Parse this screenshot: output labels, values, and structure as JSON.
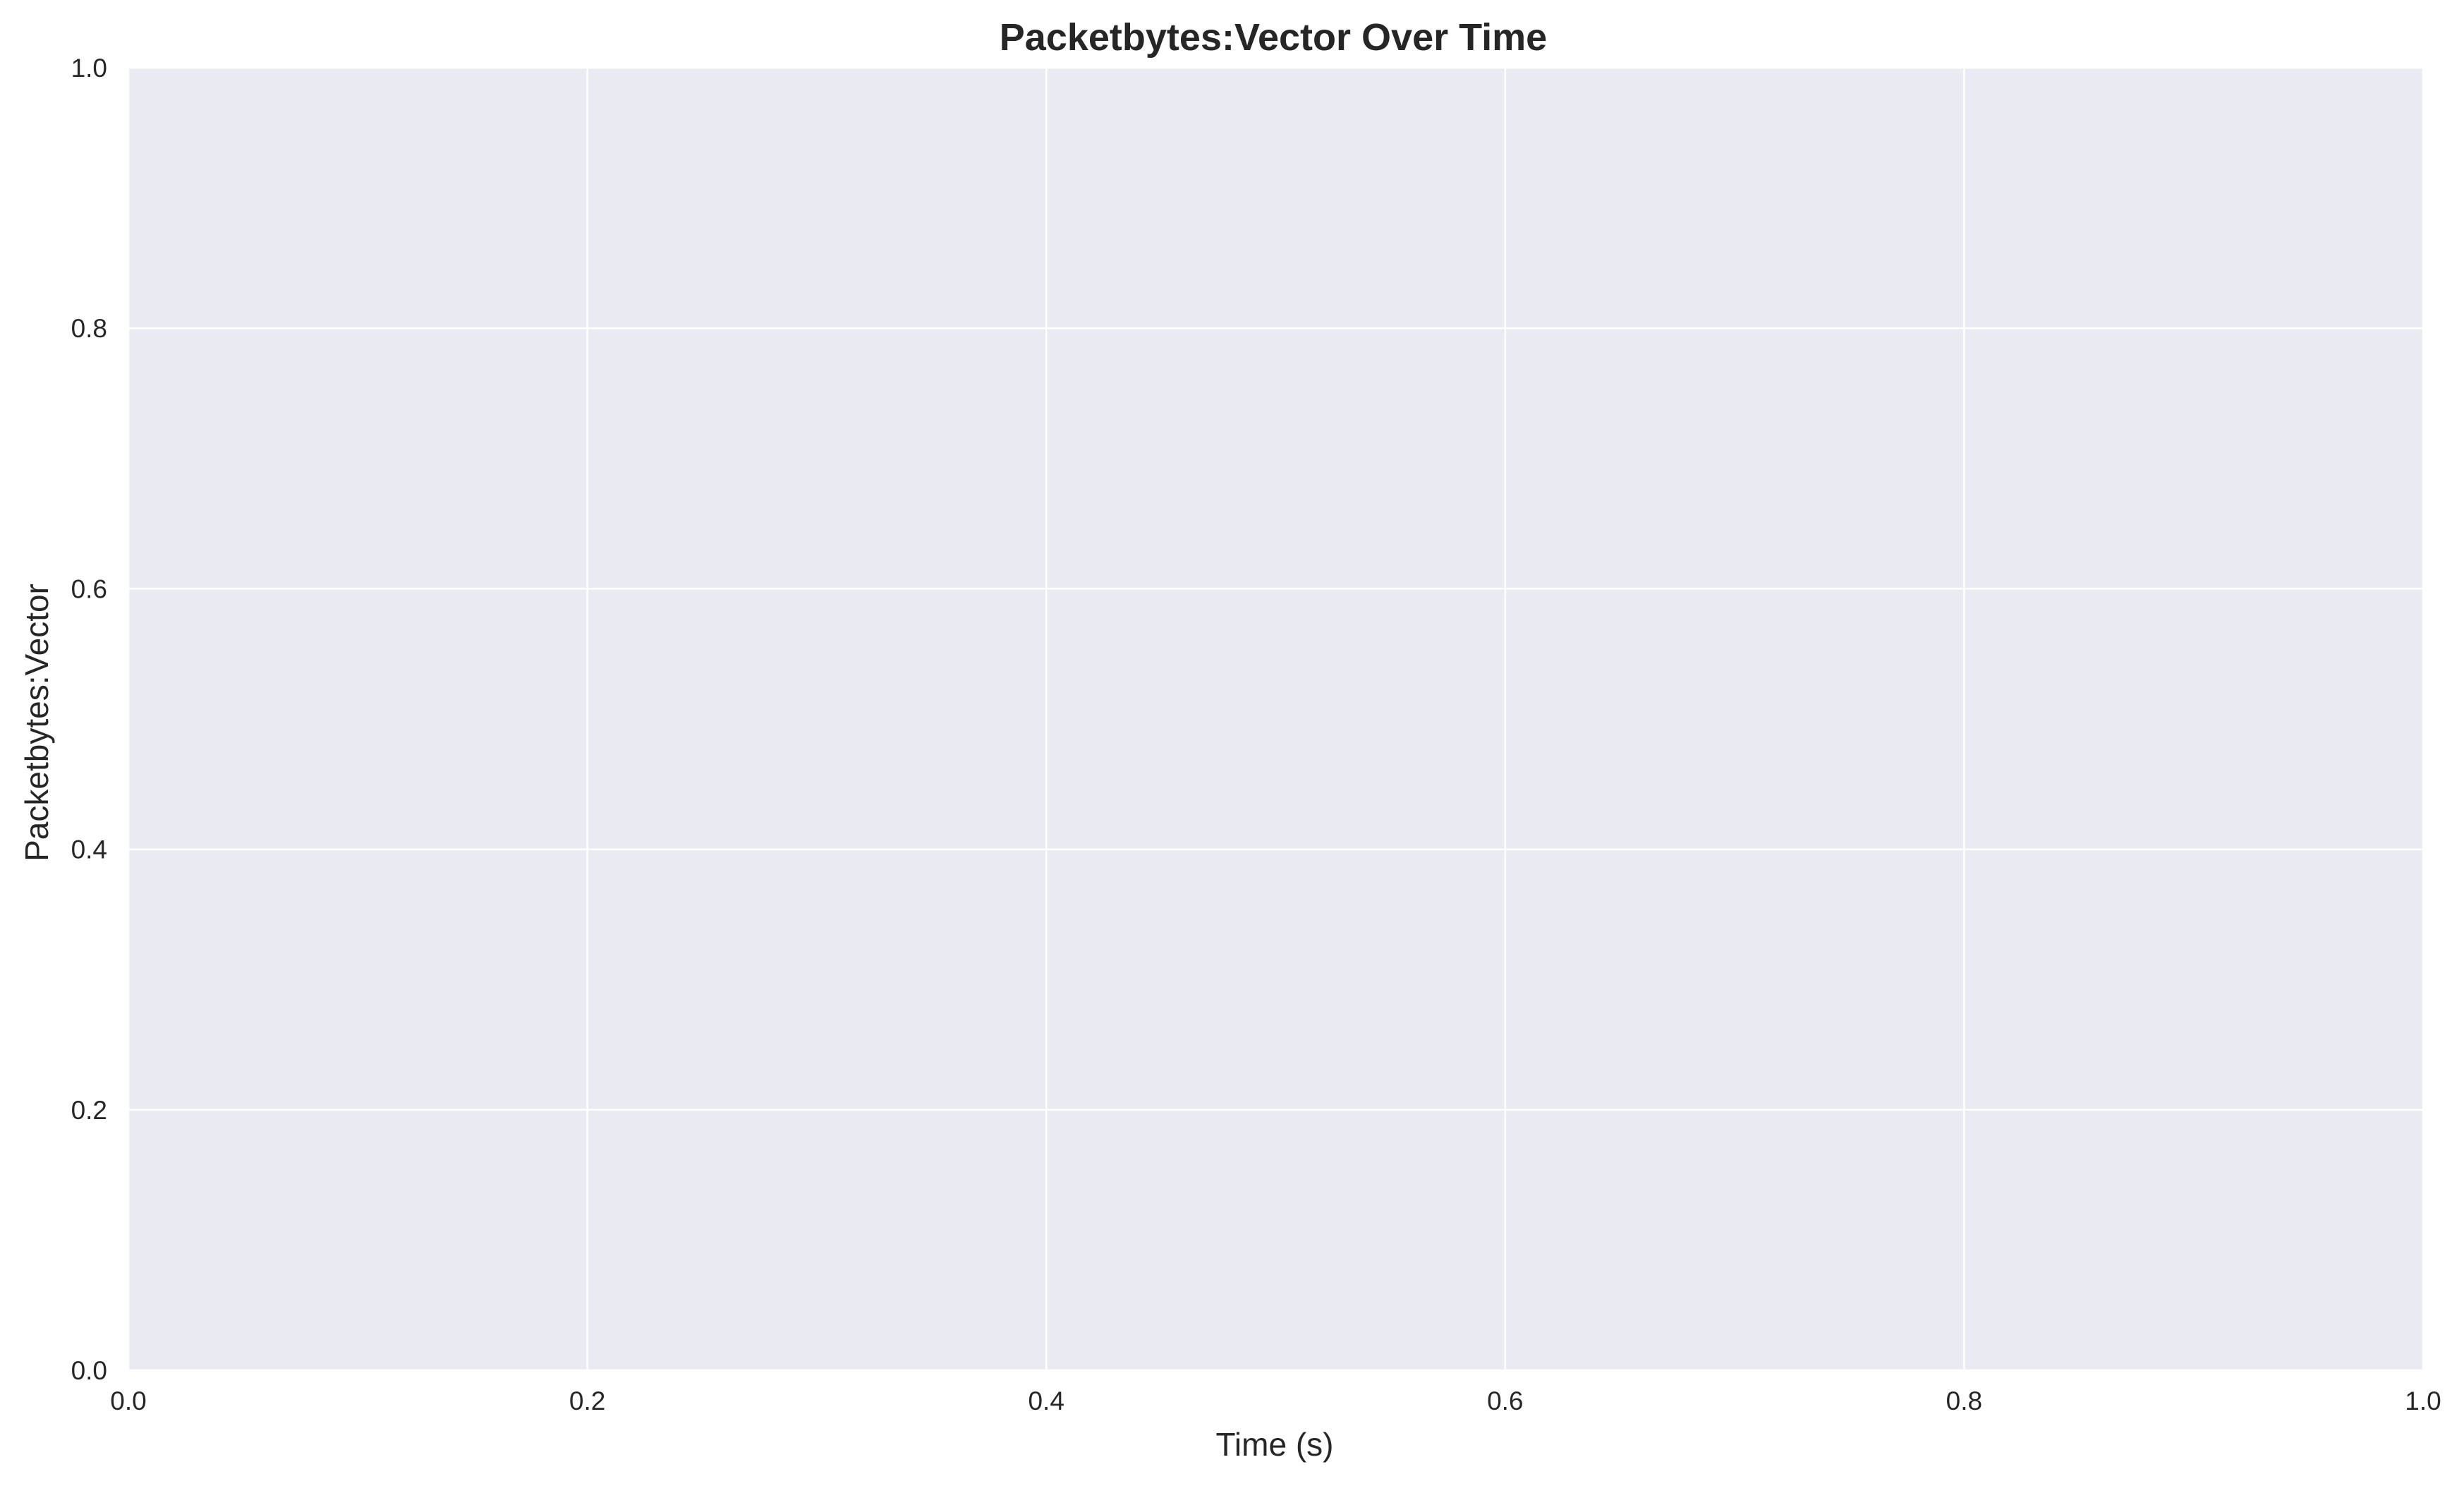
{
  "chart_data": {
    "type": "line",
    "title": "Packetbytes:Vector Over Time",
    "xlabel": "Time (s)",
    "ylabel": "Packetbytes:Vector",
    "xlim": [
      0.0,
      1.0
    ],
    "ylim": [
      0.0,
      1.0
    ],
    "xticks": [
      "0.0",
      "0.2",
      "0.4",
      "0.6",
      "0.8",
      "1.0"
    ],
    "yticks": [
      "0.0",
      "0.2",
      "0.4",
      "0.6",
      "0.8",
      "1.0"
    ],
    "series": [],
    "grid": true,
    "legend": "none",
    "colors": {
      "plot_background": "#eaeaf2",
      "grid": "#ffffff",
      "text": "#262626"
    }
  }
}
